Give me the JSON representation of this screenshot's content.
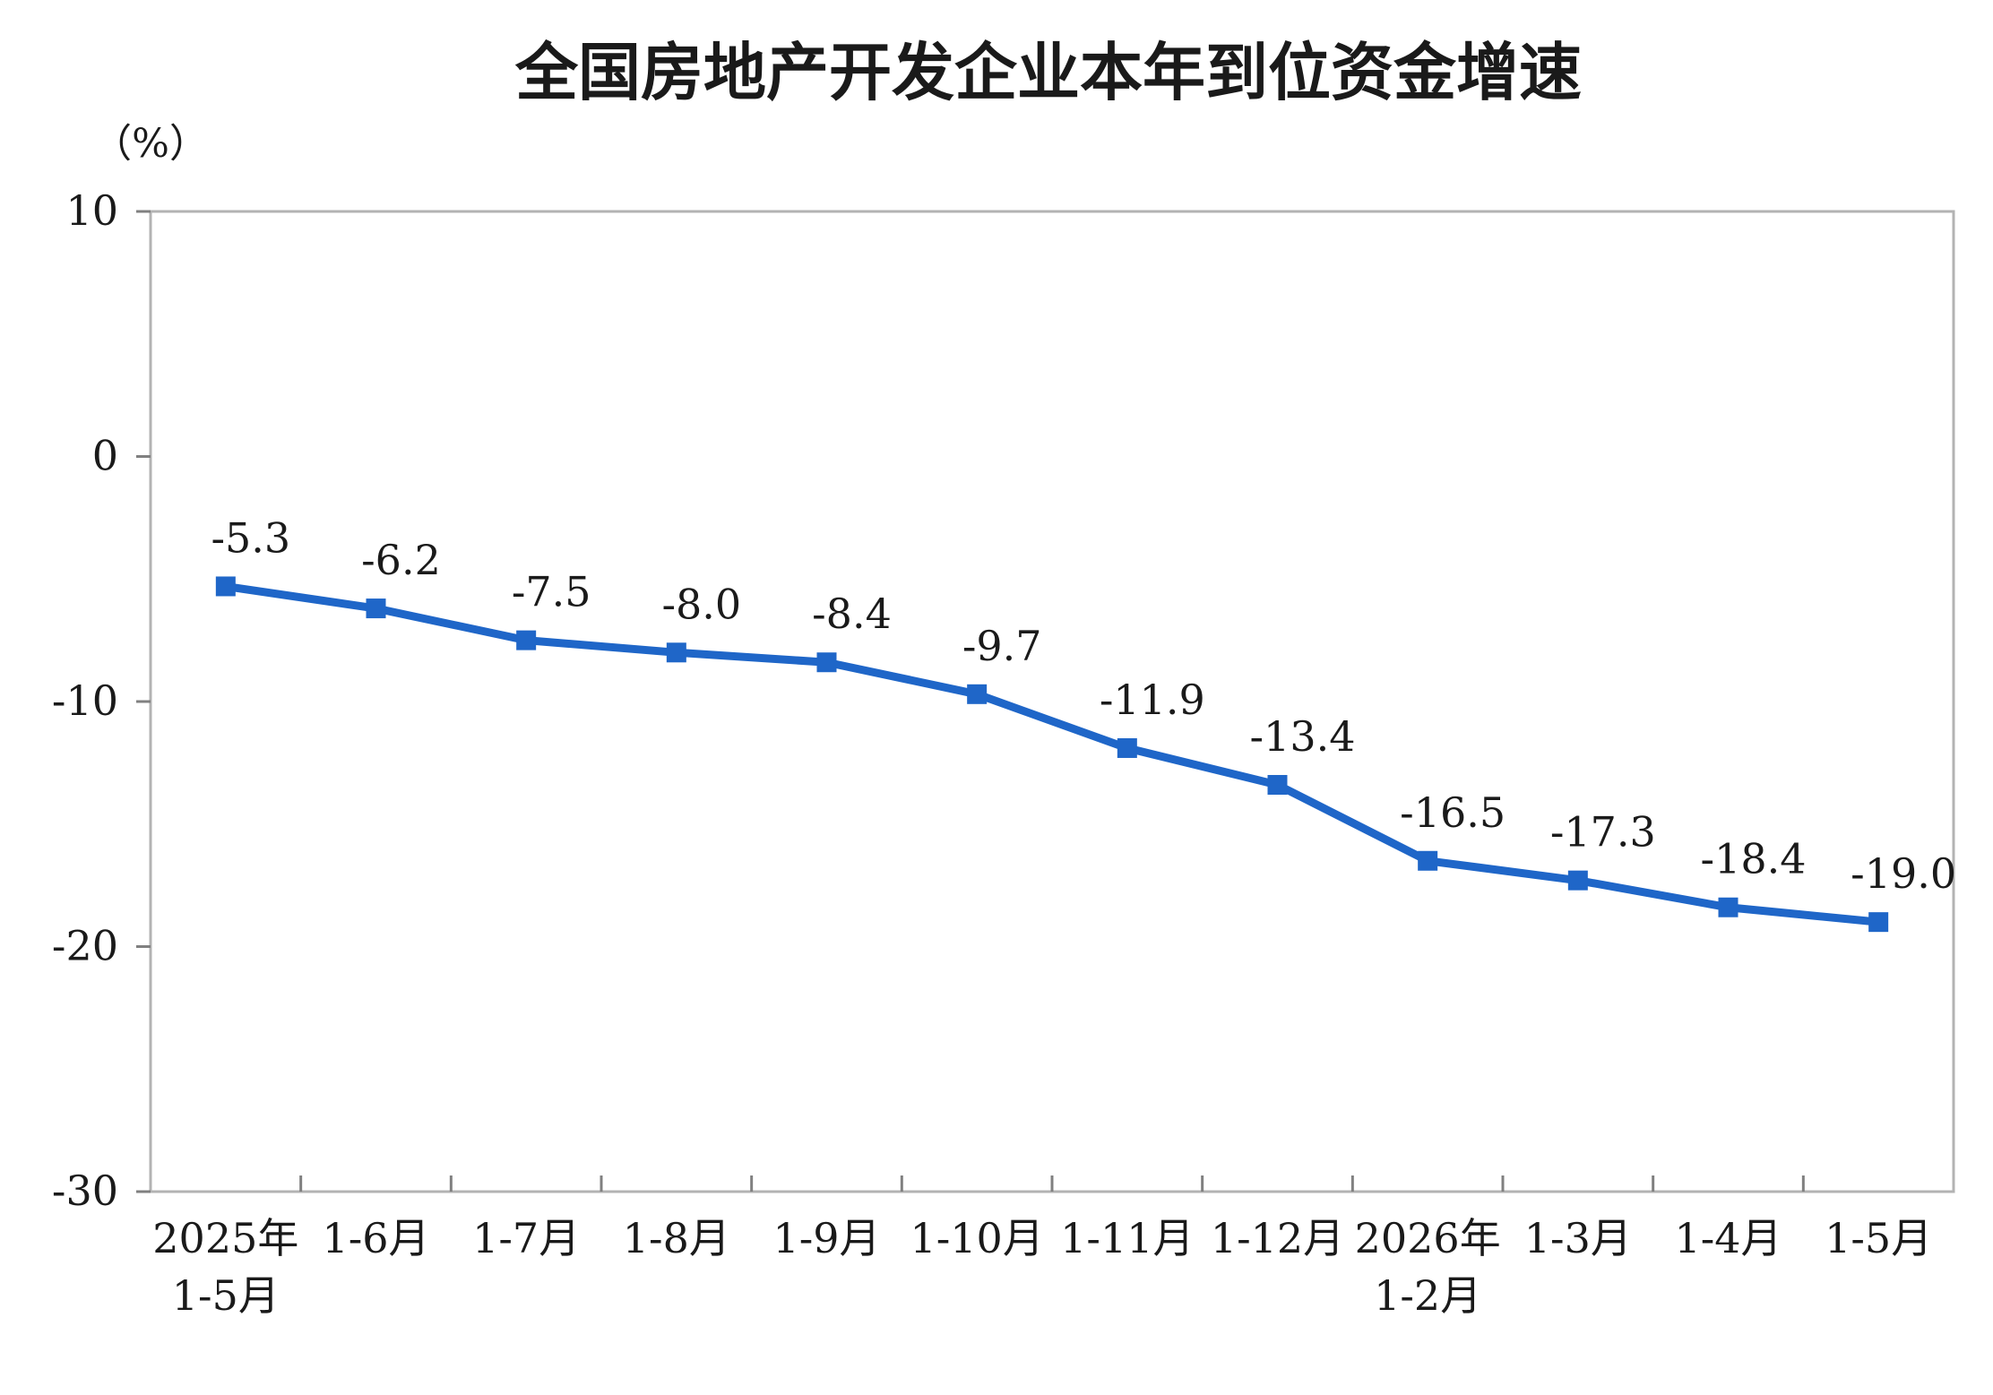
{
  "chart_data": {
    "type": "line",
    "title": "全国房地产开发企业本年到位资金增速",
    "ylabel": "（%）",
    "xlabel": "",
    "ylim": [
      -30,
      10
    ],
    "yticks": [
      10,
      0,
      -10,
      -20,
      -30
    ],
    "grid": false,
    "legend": "none",
    "categories": [
      [
        "2025年",
        "1-5月"
      ],
      [
        "1-6月"
      ],
      [
        "1-7月"
      ],
      [
        "1-8月"
      ],
      [
        "1-9月"
      ],
      [
        "1-10月"
      ],
      [
        "1-11月"
      ],
      [
        "1-12月"
      ],
      [
        "2026年",
        "1-2月"
      ],
      [
        "1-3月"
      ],
      [
        "1-4月"
      ],
      [
        "1-5月"
      ]
    ],
    "series": [
      {
        "values": [
          -5.3,
          -6.2,
          -7.5,
          -8.0,
          -8.4,
          -9.7,
          -11.9,
          -13.4,
          -16.5,
          -17.3,
          -18.4,
          -19.0
        ],
        "labels": [
          "-5.3",
          "-6.2",
          "-7.5",
          "-8.0",
          "-8.4",
          "-9.7",
          "-11.9",
          "-13.4",
          "-16.5",
          "-17.3",
          "-18.4",
          "-19.0"
        ],
        "color": "#1f66c8"
      }
    ]
  }
}
